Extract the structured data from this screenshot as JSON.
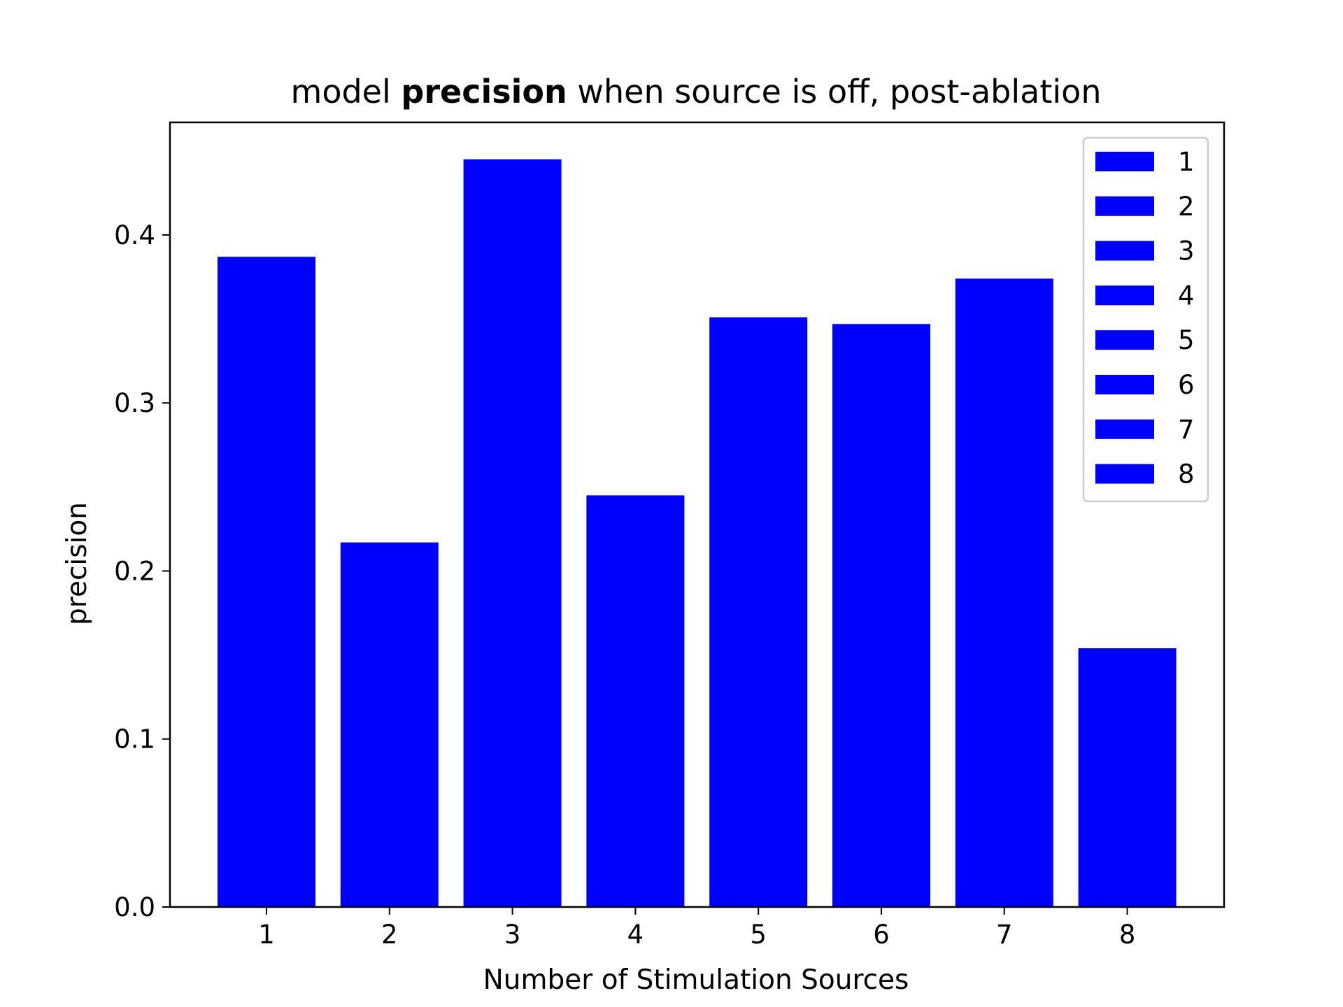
{
  "chart_data": {
    "type": "bar",
    "title": {
      "prefix": "model ",
      "bold": "precision",
      "suffix": " when source is off, post-ablation"
    },
    "xlabel": "Number of Stimulation Sources",
    "ylabel": "precision",
    "categories": [
      "1",
      "2",
      "3",
      "4",
      "5",
      "6",
      "7",
      "8"
    ],
    "values": [
      0.387,
      0.217,
      0.445,
      0.245,
      0.351,
      0.347,
      0.374,
      0.154
    ],
    "ylim": [
      0,
      0.467
    ],
    "yticks": [
      "0.0",
      "0.1",
      "0.2",
      "0.3",
      "0.4"
    ],
    "bar_color": "#0000ff",
    "legend": {
      "placement": "top-right",
      "entries": [
        "1",
        "2",
        "3",
        "4",
        "5",
        "6",
        "7",
        "8"
      ]
    },
    "grid": false
  }
}
